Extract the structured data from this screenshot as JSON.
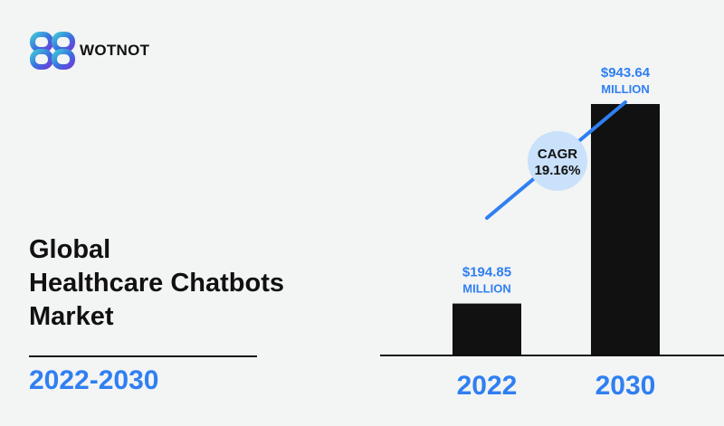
{
  "brand": {
    "name": "WOTNOT"
  },
  "title": {
    "lines": [
      "Global",
      "Healthcare Chatbots",
      "Market"
    ],
    "years": "2022-2030"
  },
  "colors": {
    "accent": "#2f7ff2",
    "bar": "#111111",
    "cagr_bubble": "#c9e1fa",
    "background": "#f3f4f4"
  },
  "chart_data": {
    "type": "bar",
    "categories": [
      "2022",
      "2030"
    ],
    "values": [
      194.85,
      943.64
    ],
    "value_labels": [
      [
        "$194.85",
        "MILLION"
      ],
      [
        "$943.64",
        "MILLION"
      ]
    ],
    "annotation": {
      "line1": "CAGR",
      "line2": "19.16%"
    },
    "ylim": [
      0,
      943.64
    ],
    "grid": false
  }
}
